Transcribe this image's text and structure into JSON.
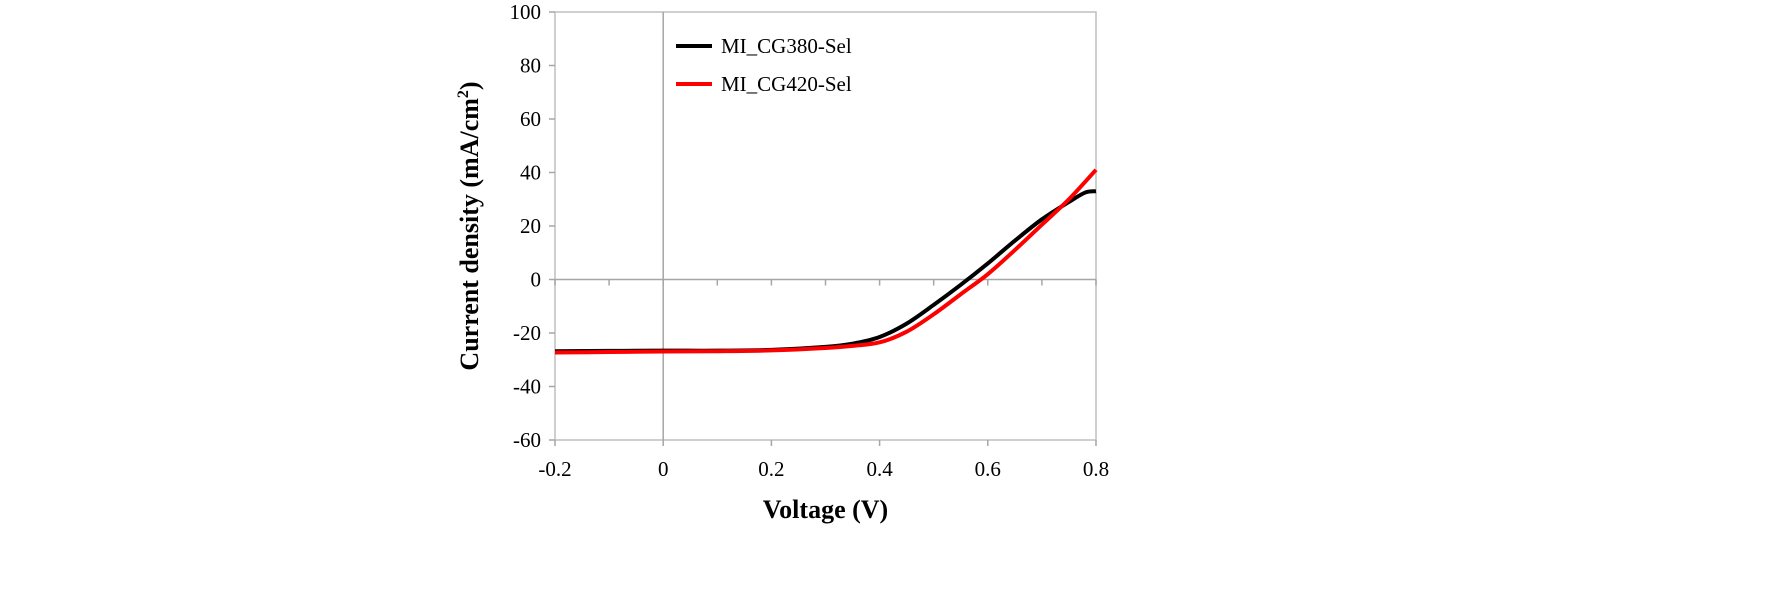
{
  "chart_data": {
    "type": "line",
    "xlabel": "Voltage (V)",
    "ylabel_main": "Current density (mA/cm",
    "ylabel_sup": "2",
    "ylabel_close": ")",
    "xlim": [
      -0.2,
      0.8
    ],
    "ylim": [
      -60,
      100
    ],
    "x_ticks": [
      -0.2,
      0,
      0.2,
      0.4,
      0.6,
      0.8
    ],
    "x_tick_labels": [
      "-0.2",
      "0",
      "0.2",
      "0.4",
      "0.6",
      "0.8"
    ],
    "y_ticks": [
      -60,
      -40,
      -20,
      0,
      20,
      40,
      60,
      80,
      100
    ],
    "y_tick_labels": [
      "-60",
      "-40",
      "-20",
      "0",
      "20",
      "40",
      "60",
      "80",
      "100"
    ],
    "legend_position": "top-left",
    "grid": false,
    "series": [
      {
        "name": "MI_CG380-Sel",
        "color": "#000000",
        "points": [
          [
            -0.2,
            -26.8
          ],
          [
            -0.1,
            -26.7
          ],
          [
            0.0,
            -26.6
          ],
          [
            0.1,
            -26.6
          ],
          [
            0.2,
            -26.3
          ],
          [
            0.3,
            -25.2
          ],
          [
            0.35,
            -24.0
          ],
          [
            0.4,
            -21.5
          ],
          [
            0.45,
            -16.5
          ],
          [
            0.5,
            -9.5
          ],
          [
            0.55,
            -2.0
          ],
          [
            0.6,
            6.0
          ],
          [
            0.65,
            14.5
          ],
          [
            0.7,
            22.5
          ],
          [
            0.75,
            29.0
          ],
          [
            0.78,
            32.5
          ],
          [
            0.8,
            33.0
          ]
        ]
      },
      {
        "name": "MI_CG420-Sel",
        "color": "#ff0000",
        "points": [
          [
            -0.2,
            -27.3
          ],
          [
            -0.1,
            -27.1
          ],
          [
            0.0,
            -26.9
          ],
          [
            0.1,
            -26.8
          ],
          [
            0.2,
            -26.5
          ],
          [
            0.3,
            -25.6
          ],
          [
            0.35,
            -24.8
          ],
          [
            0.4,
            -23.5
          ],
          [
            0.45,
            -19.5
          ],
          [
            0.5,
            -13.0
          ],
          [
            0.55,
            -5.5
          ],
          [
            0.6,
            2.0
          ],
          [
            0.65,
            11.0
          ],
          [
            0.7,
            20.5
          ],
          [
            0.75,
            30.0
          ],
          [
            0.8,
            41.0
          ]
        ]
      }
    ]
  }
}
